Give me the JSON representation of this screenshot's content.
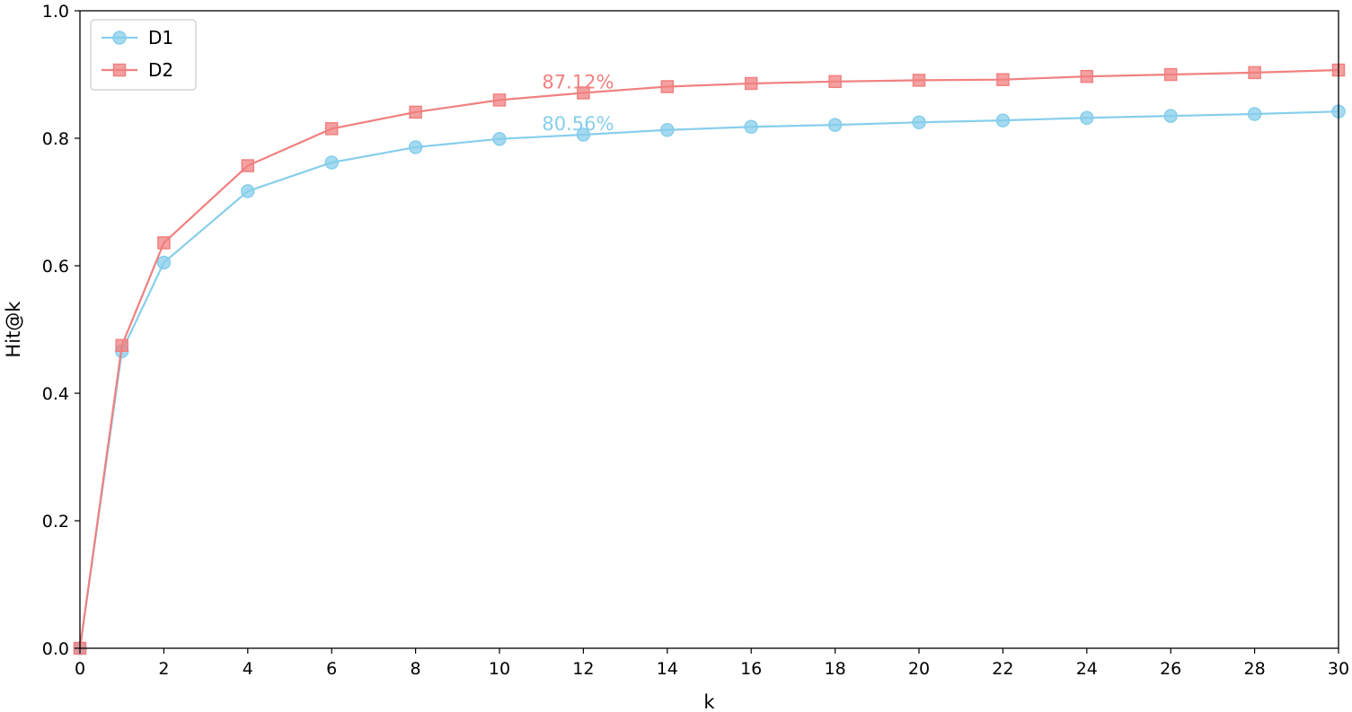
{
  "chart_data": {
    "type": "line",
    "xlabel": "k",
    "ylabel": "Hit@k",
    "xlim": [
      0,
      30
    ],
    "ylim": [
      0.0,
      1.0
    ],
    "x_ticks": [
      "0",
      "2",
      "4",
      "6",
      "8",
      "10",
      "12",
      "14",
      "16",
      "18",
      "20",
      "22",
      "24",
      "26",
      "28",
      "30"
    ],
    "y_ticks": [
      "0.0",
      "0.2",
      "0.4",
      "0.6",
      "0.8",
      "1.0"
    ],
    "grid": false,
    "legend_position": "top-left",
    "x": [
      0,
      1,
      2,
      4,
      6,
      8,
      10,
      12,
      14,
      16,
      18,
      20,
      22,
      24,
      26,
      28,
      30
    ],
    "series": [
      {
        "name": "D1",
        "color": "#87ceeb",
        "marker": "circle",
        "values": [
          0.0,
          0.466,
          0.605,
          0.717,
          0.762,
          0.786,
          0.799,
          0.8056,
          0.813,
          0.818,
          0.821,
          0.825,
          0.828,
          0.832,
          0.835,
          0.838,
          0.842
        ]
      },
      {
        "name": "D2",
        "color": "#f08080",
        "marker": "square",
        "values": [
          0.0,
          0.475,
          0.636,
          0.757,
          0.815,
          0.841,
          0.86,
          0.8712,
          0.881,
          0.886,
          0.889,
          0.891,
          0.892,
          0.897,
          0.9,
          0.903,
          0.907
        ]
      }
    ],
    "annotations": [
      {
        "text": "87.12%",
        "x": 12,
        "y": 0.8712,
        "color": "#f08080"
      },
      {
        "text": "80.56%",
        "x": 12,
        "y": 0.8056,
        "color": "#87ceeb"
      }
    ]
  }
}
